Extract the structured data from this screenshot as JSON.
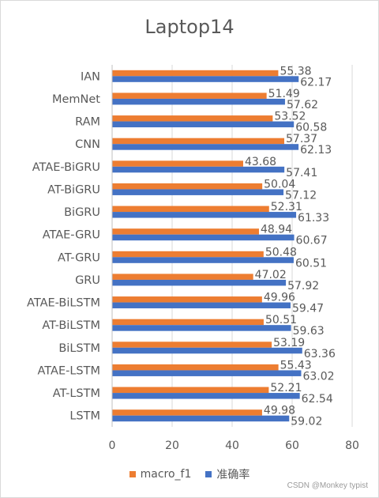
{
  "chart_data": {
    "type": "bar",
    "orientation": "horizontal",
    "title": "Laptop14",
    "categories": [
      "IAN",
      "MemNet",
      "RAM",
      "CNN",
      "ATAE-BiGRU",
      "AT-BiGRU",
      "BiGRU",
      "ATAE-GRU",
      "AT-GRU",
      "GRU",
      "ATAE-BiLSTM",
      "AT-BiLSTM",
      "BiLSTM",
      "ATAE-LSTM",
      "AT-LSTM",
      "LSTM"
    ],
    "series": [
      {
        "name": "macro_f1",
        "color": "#ED7D31",
        "values": [
          55.38,
          51.49,
          53.52,
          57.37,
          43.68,
          50.04,
          52.31,
          48.94,
          50.48,
          47.02,
          49.96,
          50.51,
          53.19,
          55.43,
          52.21,
          49.98
        ]
      },
      {
        "name": "准确率",
        "color": "#4472C4",
        "values": [
          62.17,
          57.62,
          60.58,
          62.13,
          57.41,
          57.12,
          61.33,
          60.67,
          60.51,
          57.92,
          59.47,
          59.63,
          63.36,
          63.02,
          62.54,
          59.02
        ]
      }
    ],
    "xlim": [
      0,
      80
    ],
    "xticks": [
      "0",
      "20",
      "40",
      "60",
      "80"
    ],
    "grid": true,
    "legend_position": "bottom"
  },
  "watermark": "CSDN @Monkey typist"
}
